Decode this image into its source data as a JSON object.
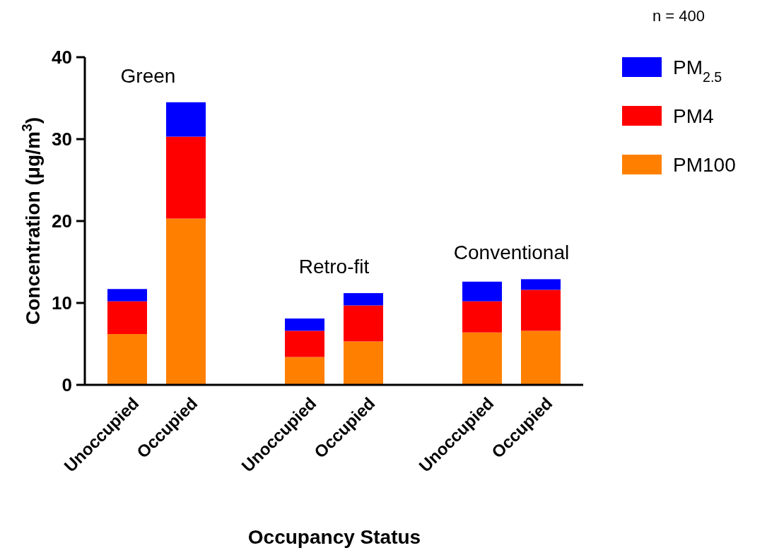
{
  "chart_data": {
    "type": "bar",
    "stacked": true,
    "xlabel": "Occupancy Status",
    "ylabel": "Concentration (μg/m$^{3}$)",
    "categories": [
      "Unoccupied",
      "Occupied",
      "Unoccupied",
      "Occupied",
      "Unoccupied",
      "Occupied"
    ],
    "series": [
      {
        "name": "PM100",
        "color": "#ff8000",
        "values": [
          6.2,
          20.3,
          3.4,
          5.3,
          6.4,
          6.6
        ]
      },
      {
        "name": "PM4",
        "color": "#ff0000",
        "values": [
          4.0,
          10.0,
          3.2,
          4.4,
          3.8,
          5.0
        ]
      },
      {
        "name": "PM$_{2.5}$",
        "color": "#0000ff",
        "values": [
          1.5,
          4.2,
          1.5,
          1.5,
          2.4,
          1.3
        ]
      }
    ],
    "ylim": [
      0,
      40
    ],
    "yticks": [
      0,
      10,
      20,
      30,
      40
    ],
    "grid": false,
    "legend": "top right",
    "annotations": [
      "n = 400",
      "Green",
      "Retro-fit",
      "Conventional"
    ]
  }
}
